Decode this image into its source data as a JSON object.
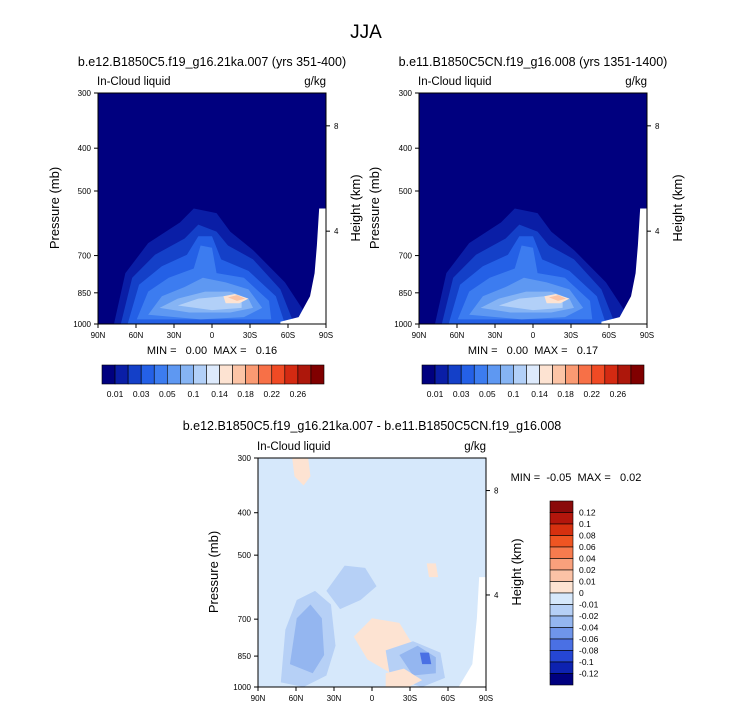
{
  "title": "JJA",
  "panels": [
    {
      "title": "b.e12.B1850C5.f19_g16.21ka.007 (yrs 351-400)",
      "left_label": "In-Cloud liquid",
      "right_label": "g/kg",
      "ylabel": "Pressure (mb)",
      "y2label": "Height (km)",
      "stats_text": "MIN =   0.00  MAX =   0.16",
      "colorbar": {
        "labels": [
          "0.01",
          "0.03",
          "0.05",
          "0.1",
          "0.14",
          "0.18",
          "0.22",
          "0.26"
        ],
        "colors": [
          "#00007f",
          "#0a1ea6",
          "#1440c8",
          "#2460e6",
          "#3c7cf0",
          "#5e98f2",
          "#86b4f4",
          "#b2d0f8",
          "#ddeafc",
          "#fde3d2",
          "#fcc4a6",
          "#fa9a72",
          "#f77047",
          "#f04a24",
          "#d42a12",
          "#ad170b",
          "#800000"
        ]
      }
    },
    {
      "title": "b.e11.B1850C5CN.f19_g16.008 (yrs 1351-1400)",
      "left_label": "In-Cloud liquid",
      "right_label": "g/kg",
      "ylabel": "Pressure (mb)",
      "y2label": "Height (km)",
      "stats_text": "MIN =   0.00  MAX =   0.17",
      "colorbar": {
        "labels": [
          "0.01",
          "0.03",
          "0.05",
          "0.1",
          "0.14",
          "0.18",
          "0.22",
          "0.26"
        ],
        "colors": [
          "#00007f",
          "#0a1ea6",
          "#1440c8",
          "#2460e6",
          "#3c7cf0",
          "#5e98f2",
          "#86b4f4",
          "#b2d0f8",
          "#ddeafc",
          "#fde3d2",
          "#fcc4a6",
          "#fa9a72",
          "#f77047",
          "#f04a24",
          "#d42a12",
          "#ad170b",
          "#800000"
        ]
      }
    },
    {
      "title": "b.e12.B1850C5.f19_g16.21ka.007 - b.e11.B1850C5CN.f19_g16.008",
      "left_label": "In-Cloud liquid",
      "right_label": "g/kg",
      "ylabel": "Pressure (mb)",
      "y2label": "Height (km)",
      "stats_text": "MIN =  -0.05  MAX =   0.02",
      "colorbar": {
        "labels": [
          "0.12",
          "0.1",
          "0.08",
          "0.06",
          "0.04",
          "0.02",
          "0.01",
          "0",
          "-0.01",
          "-0.02",
          "-0.04",
          "-0.06",
          "-0.08",
          "-0.1",
          "-0.12"
        ],
        "colors": [
          "#8a0a0a",
          "#b3160c",
          "#d6300f",
          "#ef5522",
          "#f77b4e",
          "#f9a07c",
          "#fbc2a6",
          "#fde3d2",
          "#d6e8fb",
          "#b6d0f6",
          "#94b6f0",
          "#6f95ea",
          "#4a70e4",
          "#2546d4",
          "#0d22b0",
          "#00007f"
        ]
      }
    }
  ],
  "chart_data": [
    {
      "type": "contour",
      "title": "b.e12.B1850C5.f19_g16.21ka.007 (yrs 351-400)",
      "variable": "In-Cloud liquid",
      "units": "g/kg",
      "x_ticks": [
        "90N",
        "60N",
        "30N",
        "0",
        "30S",
        "60S",
        "90S"
      ],
      "x_values": [
        90,
        60,
        30,
        0,
        -30,
        -60,
        -90
      ],
      "y_ticks": [
        300,
        400,
        500,
        700,
        850,
        1000
      ],
      "y_scale": "log",
      "ylim": [
        1000,
        300
      ],
      "y2_ticks_km": [
        4,
        8
      ],
      "min": 0.0,
      "max": 0.16,
      "levels": [
        0.01,
        0.02,
        0.03,
        0.04,
        0.05,
        0.07,
        0.1,
        0.12,
        0.14,
        0.16,
        0.18,
        0.2,
        0.22,
        0.24,
        0.26
      ],
      "features": [
        {
          "lat": 15,
          "p": 870,
          "value": 0.16
        },
        {
          "lat": -15,
          "p": 850,
          "value": 0.16
        },
        {
          "lat": 45,
          "p": 870,
          "value": 0.08
        },
        {
          "lat": 18,
          "p": 650,
          "value": 0.06
        }
      ]
    },
    {
      "type": "contour",
      "title": "b.e11.B1850C5CN.f19_g16.008 (yrs 1351-1400)",
      "variable": "In-Cloud liquid",
      "units": "g/kg",
      "x_ticks": [
        "90N",
        "60N",
        "30N",
        "0",
        "30S",
        "60S",
        "90S"
      ],
      "x_values": [
        90,
        60,
        30,
        0,
        -30,
        -60,
        -90
      ],
      "y_ticks": [
        300,
        400,
        500,
        700,
        850,
        1000
      ],
      "y_scale": "log",
      "ylim": [
        1000,
        300
      ],
      "y2_ticks_km": [
        4,
        8
      ],
      "min": 0.0,
      "max": 0.17,
      "levels": [
        0.01,
        0.02,
        0.03,
        0.04,
        0.05,
        0.07,
        0.1,
        0.12,
        0.14,
        0.16,
        0.18,
        0.2,
        0.22,
        0.24,
        0.26
      ],
      "features": [
        {
          "lat": 15,
          "p": 870,
          "value": 0.17
        },
        {
          "lat": -15,
          "p": 860,
          "value": 0.17
        },
        {
          "lat": 45,
          "p": 870,
          "value": 0.08
        },
        {
          "lat": 18,
          "p": 650,
          "value": 0.06
        }
      ]
    },
    {
      "type": "contour",
      "title": "b.e12.B1850C5.f19_g16.21ka.007 - b.e11.B1850C5CN.f19_g16.008",
      "variable": "In-Cloud liquid",
      "units": "g/kg",
      "x_ticks": [
        "90N",
        "60N",
        "30N",
        "0",
        "30S",
        "60S",
        "90S"
      ],
      "x_values": [
        90,
        60,
        30,
        0,
        -30,
        -60,
        -90
      ],
      "y_ticks": [
        300,
        400,
        500,
        700,
        850,
        1000
      ],
      "y_scale": "log",
      "ylim": [
        1000,
        300
      ],
      "y2_ticks_km": [
        4,
        8
      ],
      "min": -0.05,
      "max": 0.02,
      "levels": [
        -0.12,
        -0.1,
        -0.08,
        -0.06,
        -0.04,
        -0.02,
        -0.01,
        0,
        0.01,
        0.02,
        0.04,
        0.06,
        0.08,
        0.1,
        0.12
      ],
      "features": [
        {
          "lat": 60,
          "p": 760,
          "value": -0.03
        },
        {
          "lat": -45,
          "p": 880,
          "value": -0.05
        },
        {
          "lat": -25,
          "p": 800,
          "value": 0.01
        },
        {
          "lat": 10,
          "p": 560,
          "value": -0.01
        },
        {
          "lat": 75,
          "p": 320,
          "value": 0.01
        }
      ]
    }
  ]
}
